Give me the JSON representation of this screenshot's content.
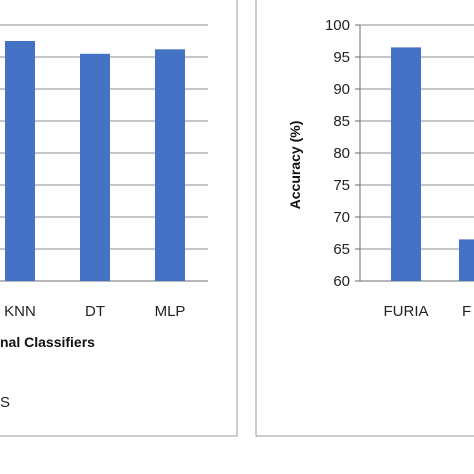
{
  "chart_data": [
    {
      "type": "bar",
      "categories": [
        "KNN",
        "DT",
        "MLP"
      ],
      "values": [
        97.5,
        95.5,
        96.2
      ],
      "ylim": [
        60,
        100
      ],
      "grid": true,
      "xlabel_fragment": "nal Classifiers",
      "text_fragment": "S",
      "bar_color": "#4472C4"
    },
    {
      "type": "bar",
      "categories": [
        "FURIA",
        "F"
      ],
      "values": [
        96.5,
        66.5
      ],
      "ylim": [
        60,
        100
      ],
      "yticks": [
        "60",
        "65",
        "70",
        "75",
        "80",
        "85",
        "90",
        "95",
        "100"
      ],
      "ylabel": "Accuracy (%)",
      "grid": true,
      "bar_color": "#4472C4"
    }
  ]
}
